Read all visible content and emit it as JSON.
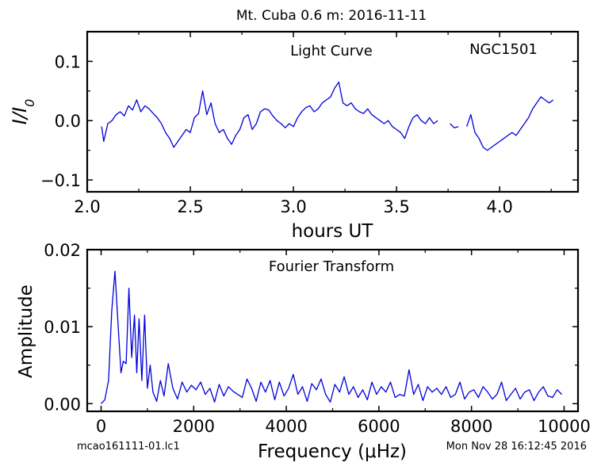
{
  "figure": {
    "title": "Mt. Cuba 0.6 m:  2016-11-11",
    "footer_left": "mcao161111-01.lc1",
    "footer_right": "Mon Nov 28 16:12:45 2016"
  },
  "chart_data": [
    {
      "type": "line",
      "title": "Light Curve",
      "annotation": "NGC1501",
      "xlabel": "hours UT",
      "ylabel": "I/I0",
      "xlim": [
        2.0,
        4.38
      ],
      "ylim": [
        -0.12,
        0.15
      ],
      "xticks": [
        "2.0",
        "2.5",
        "3.0",
        "3.5",
        "4.0"
      ],
      "xtick_values": [
        2.0,
        2.5,
        3.0,
        3.5,
        4.0
      ],
      "yticks": [
        "−0.1",
        "0.0",
        "0.1"
      ],
      "ytick_values": [
        -0.1,
        0.0,
        0.1
      ],
      "grid": false,
      "line_color": "#0000dd",
      "segments": [
        {
          "x": [
            2.07,
            2.08,
            2.1,
            2.12,
            2.14,
            2.16,
            2.18,
            2.2,
            2.22,
            2.24,
            2.26,
            2.28,
            2.3,
            2.32,
            2.34,
            2.36,
            2.38,
            2.4,
            2.42,
            2.44,
            2.46,
            2.48,
            2.5,
            2.52,
            2.54,
            2.56,
            2.58,
            2.6,
            2.62,
            2.64,
            2.66,
            2.68,
            2.7,
            2.72,
            2.74,
            2.76,
            2.78,
            2.8,
            2.82,
            2.84,
            2.86,
            2.88,
            2.9,
            2.92,
            2.94,
            2.96,
            2.98,
            3.0,
            3.02,
            3.04,
            3.06,
            3.08,
            3.1,
            3.12,
            3.14,
            3.16,
            3.18,
            3.2,
            3.22,
            3.24,
            3.26,
            3.28,
            3.3,
            3.32,
            3.34,
            3.36,
            3.38,
            3.4,
            3.42,
            3.44,
            3.46,
            3.48,
            3.5,
            3.52,
            3.54,
            3.56,
            3.58,
            3.6,
            3.62,
            3.64,
            3.66,
            3.68,
            3.7
          ],
          "y": [
            -0.01,
            -0.035,
            -0.005,
            0.0,
            0.01,
            0.015,
            0.008,
            0.025,
            0.018,
            0.035,
            0.015,
            0.025,
            0.02,
            0.012,
            0.005,
            -0.005,
            -0.02,
            -0.03,
            -0.045,
            -0.035,
            -0.025,
            -0.015,
            -0.02,
            0.005,
            0.012,
            0.05,
            0.01,
            0.03,
            -0.005,
            -0.02,
            -0.015,
            -0.03,
            -0.04,
            -0.025,
            -0.015,
            0.005,
            0.01,
            -0.015,
            -0.005,
            0.015,
            0.02,
            0.018,
            0.008,
            0.0,
            -0.005,
            -0.012,
            -0.005,
            -0.01,
            0.005,
            0.015,
            0.022,
            0.025,
            0.015,
            0.02,
            0.03,
            0.035,
            0.04,
            0.055,
            0.065,
            0.03,
            0.025,
            0.03,
            0.02,
            0.015,
            0.012,
            0.02,
            0.01,
            0.005,
            0.0,
            -0.005,
            0.0,
            -0.01,
            -0.015,
            -0.02,
            -0.03,
            -0.01,
            0.005,
            0.01,
            0.0,
            -0.005,
            0.005,
            -0.005,
            0.0
          ]
        },
        {
          "x": [
            3.76,
            3.78,
            3.8
          ],
          "y": [
            -0.005,
            -0.012,
            -0.01
          ]
        },
        {
          "x": [
            3.84,
            3.86,
            3.88,
            3.9,
            3.92,
            3.94,
            3.96,
            3.98,
            4.0,
            4.02,
            4.04,
            4.06,
            4.08,
            4.1,
            4.12,
            4.14,
            4.16,
            4.18,
            4.2,
            4.22,
            4.24,
            4.26
          ],
          "y": [
            -0.01,
            0.01,
            -0.02,
            -0.03,
            -0.045,
            -0.05,
            -0.045,
            -0.04,
            -0.035,
            -0.03,
            -0.025,
            -0.02,
            -0.025,
            -0.015,
            -0.005,
            0.005,
            0.02,
            0.03,
            0.04,
            0.035,
            0.03,
            0.035
          ]
        }
      ]
    },
    {
      "type": "line",
      "title": "Fourier Transform",
      "xlabel": "Frequency (μHz)",
      "ylabel": "Amplitude",
      "xlim": [
        -300,
        10300
      ],
      "ylim": [
        -0.001,
        0.02
      ],
      "xticks": [
        "0",
        "2000",
        "4000",
        "6000",
        "8000",
        "10000"
      ],
      "xtick_values": [
        0,
        2000,
        4000,
        6000,
        8000,
        10000
      ],
      "yticks": [
        "0.00",
        "0.01",
        "0.02"
      ],
      "ytick_values": [
        0.0,
        0.01,
        0.02
      ],
      "grid": false,
      "line_color": "#0000dd",
      "x": [
        0,
        80,
        160,
        230,
        300,
        360,
        430,
        480,
        540,
        600,
        660,
        720,
        770,
        820,
        880,
        940,
        1000,
        1060,
        1120,
        1200,
        1280,
        1360,
        1450,
        1550,
        1650,
        1750,
        1850,
        1950,
        2050,
        2150,
        2250,
        2350,
        2450,
        2550,
        2650,
        2750,
        2850,
        2950,
        3050,
        3150,
        3250,
        3350,
        3450,
        3550,
        3650,
        3750,
        3850,
        3950,
        4050,
        4150,
        4250,
        4350,
        4450,
        4550,
        4650,
        4750,
        4850,
        4950,
        5050,
        5150,
        5250,
        5350,
        5450,
        5550,
        5650,
        5750,
        5850,
        5950,
        6050,
        6150,
        6250,
        6350,
        6450,
        6550,
        6650,
        6750,
        6850,
        6950,
        7050,
        7150,
        7250,
        7350,
        7450,
        7550,
        7650,
        7750,
        7850,
        7950,
        8050,
        8150,
        8250,
        8350,
        8450,
        8550,
        8650,
        8750,
        8850,
        8950,
        9050,
        9150,
        9250,
        9350,
        9450,
        9550,
        9650,
        9750,
        9850,
        9950
      ],
      "y": [
        0.0,
        0.0005,
        0.003,
        0.012,
        0.0172,
        0.011,
        0.004,
        0.0055,
        0.0052,
        0.015,
        0.006,
        0.0115,
        0.004,
        0.011,
        0.003,
        0.0115,
        0.002,
        0.005,
        0.0015,
        0.0003,
        0.003,
        0.001,
        0.0052,
        0.002,
        0.0006,
        0.0028,
        0.0015,
        0.0024,
        0.0018,
        0.0028,
        0.0012,
        0.002,
        0.0002,
        0.0025,
        0.001,
        0.0022,
        0.0016,
        0.0012,
        0.0008,
        0.0032,
        0.002,
        0.0003,
        0.0028,
        0.0015,
        0.003,
        0.0005,
        0.0028,
        0.001,
        0.002,
        0.0038,
        0.0012,
        0.0022,
        0.0003,
        0.0026,
        0.0018,
        0.0032,
        0.0012,
        0.0002,
        0.0025,
        0.0015,
        0.0035,
        0.0012,
        0.0022,
        0.0008,
        0.0018,
        0.0005,
        0.0028,
        0.0012,
        0.0022,
        0.0015,
        0.0028,
        0.0008,
        0.0012,
        0.001,
        0.0044,
        0.0012,
        0.0025,
        0.0004,
        0.0022,
        0.0015,
        0.002,
        0.0012,
        0.0022,
        0.0008,
        0.0012,
        0.0028,
        0.0006,
        0.0015,
        0.0018,
        0.0008,
        0.0022,
        0.0015,
        0.0006,
        0.0012,
        0.0028,
        0.0004,
        0.0012,
        0.002,
        0.0006,
        0.0015,
        0.0018,
        0.0004,
        0.0015,
        0.0022,
        0.001,
        0.0008,
        0.0018,
        0.0012
      ]
    }
  ]
}
